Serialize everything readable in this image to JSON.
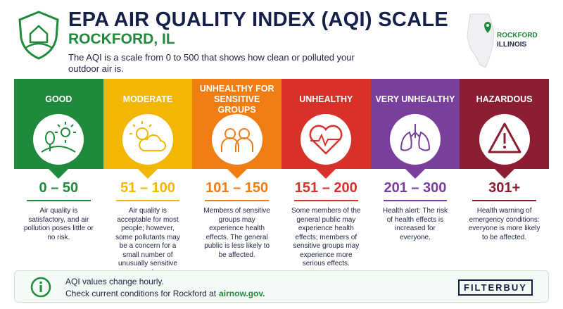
{
  "header": {
    "title": "EPA AIR QUALITY INDEX (AQI) SCALE",
    "subtitle": "ROCKFORD, IL",
    "description": "The AQI is a scale from 0 to 500 that shows how clean or polluted your outdoor air is.",
    "location": {
      "city": "ROCKFORD",
      "state": "ILLINOIS"
    }
  },
  "categories": [
    {
      "name": "GOOD",
      "range": "0 – 50",
      "color": "#1f8a3b",
      "description": "Air quality is satisfactory, and air pollution poses little or no risk."
    },
    {
      "name": "MODERATE",
      "range": "51 – 100",
      "color": "#f2b705",
      "description": "Air quality is acceptable for most people; however, some pollutants may be a concern for a small number of unusually sensitive people."
    },
    {
      "name": "UNHEALTHY FOR SENSITIVE GROUPS",
      "range": "101 – 150",
      "color": "#ef7d12",
      "description": "Members of sensitive groups may experience health effects. The general public is less likely to be affected."
    },
    {
      "name": "UNHEALTHY",
      "range": "151 – 200",
      "color": "#d8312a",
      "description": "Some members of the general public may experience health effects; members of sensitive groups may experience more serious effects."
    },
    {
      "name": "VERY UNHEALTHY",
      "range": "201 – 300",
      "color": "#7a3f9d",
      "description": "Health alert: The risk of health effects is increased for everyone."
    },
    {
      "name": "HAZARDOUS",
      "range": "301+",
      "color": "#8c1d33",
      "description": "Health warning of emergency conditions: everyone is more likely to be affected."
    }
  ],
  "footer": {
    "line1": "AQI values change hourly.",
    "line2": "Check current conditions for Rockford at",
    "link": "airnow.gov.",
    "brand": "FILTERBUY"
  }
}
